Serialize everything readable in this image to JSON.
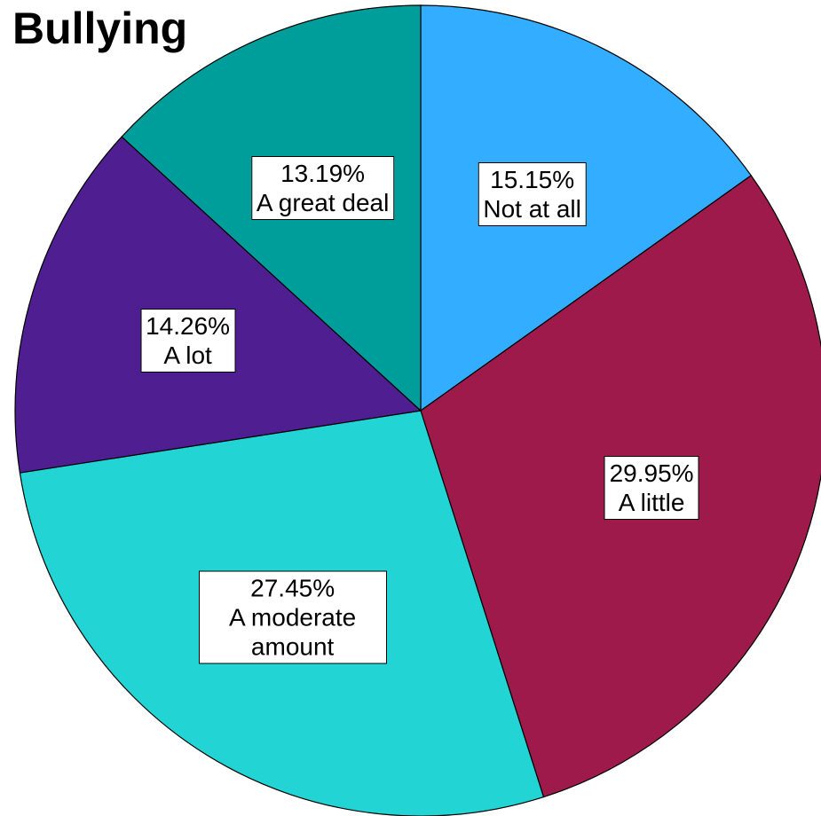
{
  "chart_data": {
    "type": "pie",
    "title": "Bullying",
    "categories": [
      "Not at all",
      "A little",
      "A moderate amount",
      "A lot",
      "A great deal"
    ],
    "values": [
      15.15,
      29.95,
      27.45,
      14.26,
      13.19
    ],
    "value_labels": [
      "15.15%",
      "29.95%",
      "27.45%",
      "14.26%",
      "13.19%"
    ],
    "colors": [
      "#33adff",
      "#9e1a4a",
      "#22d4d4",
      "#4f1f91",
      "#009e9a"
    ]
  }
}
